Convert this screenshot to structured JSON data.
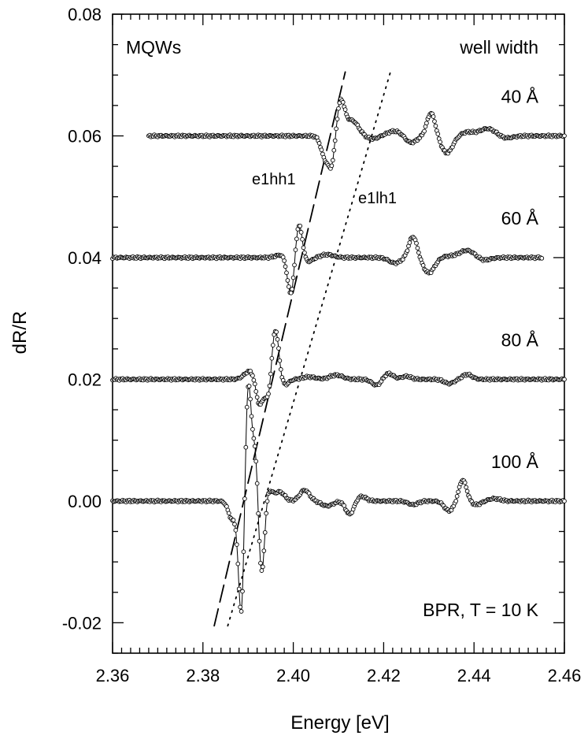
{
  "chart_data": {
    "type": "line",
    "title": "",
    "xlabel": "Energy [eV]",
    "ylabel": "dR/R",
    "xlim": [
      2.36,
      2.46
    ],
    "ylim": [
      -0.025,
      0.08
    ],
    "x_ticks": [
      2.36,
      2.38,
      2.4,
      2.42,
      2.44,
      2.46
    ],
    "x_tick_labels": [
      "2.36",
      "2.38",
      "2.40",
      "2.42",
      "2.44",
      "2.46"
    ],
    "y_ticks": [
      -0.02,
      0.0,
      0.02,
      0.04,
      0.06,
      0.08
    ],
    "y_tick_labels": [
      "-0.02",
      "0.00",
      "0.02",
      "0.04",
      "0.06",
      "0.08"
    ],
    "annotations": {
      "top_left": "MQWs",
      "top_right": "well width",
      "bottom_right": "BPR, T = 10 K",
      "label_hh": "e1hh1",
      "label_lh": "e1lh1"
    },
    "series": [
      {
        "name": "40 Å",
        "offset": 0.06,
        "x_start": 2.368,
        "x_end": 2.46,
        "features": [
          {
            "e": 2.407,
            "a": -0.0035,
            "w": 0.0012
          },
          {
            "e": 2.4085,
            "a": -0.0045,
            "w": 0.001
          },
          {
            "e": 2.4105,
            "a": 0.0055,
            "w": 0.0012
          },
          {
            "e": 2.413,
            "a": 0.0025,
            "w": 0.002
          },
          {
            "e": 2.4175,
            "a": -0.0005,
            "w": 0.002
          },
          {
            "e": 2.4225,
            "a": 0.0008,
            "w": 0.0025
          },
          {
            "e": 2.426,
            "a": -0.0012,
            "w": 0.0018
          },
          {
            "e": 2.4305,
            "a": 0.0038,
            "w": 0.0013
          },
          {
            "e": 2.434,
            "a": -0.0028,
            "w": 0.0018
          },
          {
            "e": 2.4385,
            "a": 0.0006,
            "w": 0.002
          },
          {
            "e": 2.443,
            "a": 0.0012,
            "w": 0.0025
          },
          {
            "e": 2.447,
            "a": -0.0004,
            "w": 0.002
          }
        ]
      },
      {
        "name": "60 Å",
        "offset": 0.04,
        "x_start": 2.36,
        "x_end": 2.455,
        "features": [
          {
            "e": 2.3975,
            "a": 0.0005,
            "w": 0.0018
          },
          {
            "e": 2.3995,
            "a": -0.0065,
            "w": 0.0011
          },
          {
            "e": 2.4012,
            "a": 0.006,
            "w": 0.0011
          },
          {
            "e": 2.403,
            "a": -0.0008,
            "w": 0.0015
          },
          {
            "e": 2.4075,
            "a": 0.0005,
            "w": 0.002
          },
          {
            "e": 2.4225,
            "a": -0.0009,
            "w": 0.0018
          },
          {
            "e": 2.4265,
            "a": 0.0035,
            "w": 0.0013
          },
          {
            "e": 2.43,
            "a": -0.0025,
            "w": 0.0018
          },
          {
            "e": 2.434,
            "a": 0.0002,
            "w": 0.002
          },
          {
            "e": 2.4385,
            "a": 0.0012,
            "w": 0.0025
          },
          {
            "e": 2.442,
            "a": -0.0005,
            "w": 0.002
          }
        ]
      },
      {
        "name": "80 Å",
        "offset": 0.02,
        "x_start": 2.36,
        "x_end": 2.46,
        "features": [
          {
            "e": 2.3905,
            "a": 0.0014,
            "w": 0.0018
          },
          {
            "e": 2.3925,
            "a": -0.0045,
            "w": 0.0011
          },
          {
            "e": 2.3945,
            "a": -0.0035,
            "w": 0.001
          },
          {
            "e": 2.396,
            "a": 0.0085,
            "w": 0.0011
          },
          {
            "e": 2.398,
            "a": -0.001,
            "w": 0.0013
          },
          {
            "e": 2.4035,
            "a": 0.0004,
            "w": 0.002
          },
          {
            "e": 2.4095,
            "a": 0.0007,
            "w": 0.002
          },
          {
            "e": 2.4185,
            "a": -0.001,
            "w": 0.0015
          },
          {
            "e": 2.421,
            "a": 0.001,
            "w": 0.0015
          },
          {
            "e": 2.425,
            "a": 0.0005,
            "w": 0.0015
          },
          {
            "e": 2.4345,
            "a": -0.0007,
            "w": 0.0015
          },
          {
            "e": 2.4385,
            "a": 0.0008,
            "w": 0.0015
          }
        ]
      },
      {
        "name": "100 Å",
        "offset": 0.0,
        "x_start": 2.36,
        "x_end": 2.46,
        "features": [
          {
            "e": 2.3865,
            "a": -0.003,
            "w": 0.0012
          },
          {
            "e": 2.3885,
            "a": -0.019,
            "w": 0.0009
          },
          {
            "e": 2.39,
            "a": 0.0195,
            "w": 0.0009
          },
          {
            "e": 2.3915,
            "a": 0.0085,
            "w": 0.0009
          },
          {
            "e": 2.393,
            "a": -0.0125,
            "w": 0.0009
          },
          {
            "e": 2.3945,
            "a": 0.0018,
            "w": 0.0012
          },
          {
            "e": 2.397,
            "a": 0.0015,
            "w": 0.0015
          },
          {
            "e": 2.4025,
            "a": 0.0018,
            "w": 0.0015
          },
          {
            "e": 2.4075,
            "a": -0.0008,
            "w": 0.0018
          },
          {
            "e": 2.4125,
            "a": -0.0022,
            "w": 0.0013
          },
          {
            "e": 2.415,
            "a": 0.0008,
            "w": 0.0015
          },
          {
            "e": 2.4265,
            "a": -0.0006,
            "w": 0.0015
          },
          {
            "e": 2.4345,
            "a": -0.0016,
            "w": 0.0015
          },
          {
            "e": 2.4375,
            "a": 0.0035,
            "w": 0.0012
          },
          {
            "e": 2.4405,
            "a": -0.0006,
            "w": 0.0015
          },
          {
            "e": 2.4445,
            "a": 0.0004,
            "w": 0.0018
          }
        ]
      }
    ],
    "guide_lines": [
      {
        "name": "e1hh1",
        "style": "dashed",
        "points": [
          [
            2.3825,
            -0.0205
          ],
          [
            2.4115,
            0.0705
          ]
        ]
      },
      {
        "name": "e1lh1",
        "style": "dotted",
        "points": [
          [
            2.3855,
            -0.0205
          ],
          [
            2.4215,
            0.0705
          ]
        ]
      }
    ]
  }
}
